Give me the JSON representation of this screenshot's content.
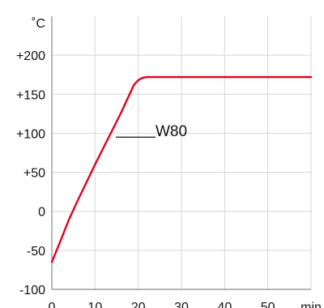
{
  "chart_data": {
    "type": "line",
    "title": "",
    "xlabel": "min",
    "ylabel": "˚C",
    "xlim": [
      0,
      60
    ],
    "ylim": [
      -100,
      250
    ],
    "grid": true,
    "x_ticks": [
      0,
      10,
      20,
      30,
      40,
      50
    ],
    "x_tick_labels": [
      "0",
      "10",
      "20",
      "30",
      "40",
      "50"
    ],
    "y_ticks": [
      -100,
      -50,
      0,
      50,
      100,
      150,
      200
    ],
    "y_tick_labels": [
      "-100",
      "-50",
      "0",
      "+50",
      "+100",
      "+150",
      "+200"
    ],
    "series": [
      {
        "name": "W80",
        "color": "#e3001b",
        "x": [
          0,
          2,
          4,
          6,
          8,
          10,
          12,
          14,
          16,
          18,
          19,
          20,
          21,
          22,
          23,
          25,
          30,
          40,
          50,
          60
        ],
        "y": [
          -65,
          -38,
          -10,
          14,
          37,
          60,
          82,
          104,
          126,
          150,
          162,
          168,
          171,
          172,
          172,
          172,
          172,
          172,
          172,
          172
        ]
      }
    ],
    "legend": {
      "placement": "inline",
      "anchor_x": 15,
      "anchor_y": 95
    }
  }
}
